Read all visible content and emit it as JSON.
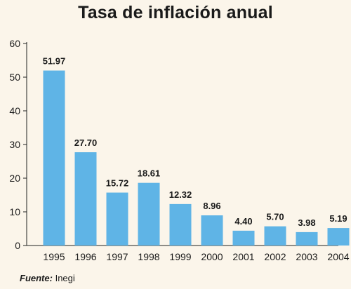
{
  "chart_data": {
    "type": "bar",
    "title": "Tasa de inflación anual",
    "categories": [
      "1995",
      "1996",
      "1997",
      "1998",
      "1999",
      "2000",
      "2001",
      "2002",
      "2003",
      "2004"
    ],
    "values": [
      51.97,
      27.7,
      15.72,
      18.61,
      12.32,
      8.96,
      4.4,
      5.7,
      3.98,
      5.19
    ],
    "value_labels": [
      "51.97",
      "27.70",
      "15.72",
      "18.61",
      "12.32",
      "8.96",
      "4.40",
      "5.70",
      "3.98",
      "5.19"
    ],
    "ylim": [
      0,
      60
    ],
    "yticks": [
      "0",
      "10",
      "20",
      "30",
      "40",
      "50",
      "60"
    ],
    "xlabel": "",
    "ylabel": "",
    "grid": false,
    "bar_color": "#5fb4e6"
  },
  "source": {
    "label": "Fuente:",
    "value": "Inegi"
  }
}
